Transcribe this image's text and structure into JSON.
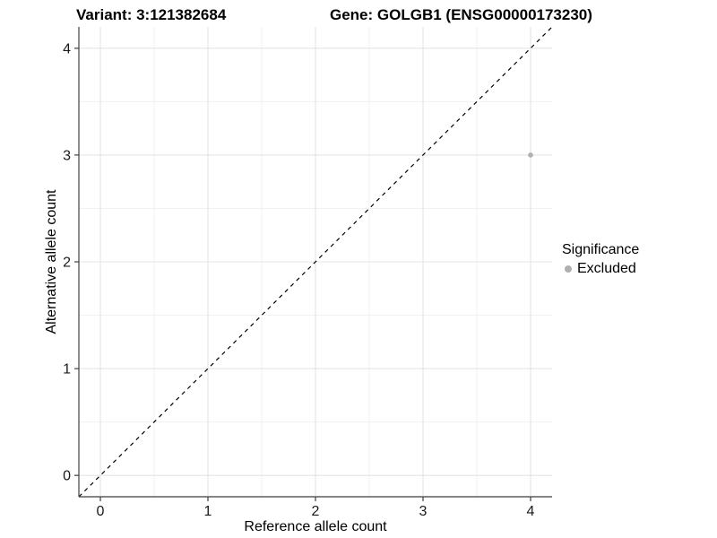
{
  "figure": {
    "title_variant": "Variant: 3:121382684",
    "title_gene": "Gene: GOLGB1 (ENSG00000173230)"
  },
  "chart_data": {
    "type": "scatter",
    "title_variant": "Variant: 3:121382684",
    "title_gene": "Gene: GOLGB1 (ENSG00000173230)",
    "xlabel": "Reference allele count",
    "ylabel": "Alternative allele count",
    "xlim": [
      -0.2,
      4.2
    ],
    "ylim": [
      -0.2,
      4.2
    ],
    "x_ticks": [
      0,
      1,
      2,
      3,
      4
    ],
    "y_ticks": [
      0,
      1,
      2,
      3,
      4
    ],
    "x_minor_ticks": [
      0.5,
      1.5,
      2.5,
      3.5
    ],
    "y_minor_ticks": [
      0.5,
      1.5,
      2.5,
      3.5
    ],
    "grid": true,
    "identity_line": {
      "style": "dashed",
      "color": "#000000",
      "x1": -0.2,
      "y1": -0.2,
      "x2": 4.2,
      "y2": 4.2
    },
    "series": [
      {
        "name": "Excluded",
        "color": "#b0b0b0",
        "points": [
          {
            "x": 4,
            "y": 3
          }
        ]
      }
    ],
    "legend": {
      "title": "Significance",
      "position": "right",
      "items": [
        {
          "label": "Excluded",
          "color": "#b0b0b0"
        }
      ]
    },
    "colors": {
      "background": "#ffffff",
      "grid_major": "#e4e4e4",
      "grid_minor": "#f0f0f0",
      "axis_line": "#3f3f3f",
      "tick_mark": "#3f3f3f",
      "tick_label": "#1a1a1a",
      "axis_title": "#000000",
      "point": "#b0b0b0"
    }
  }
}
